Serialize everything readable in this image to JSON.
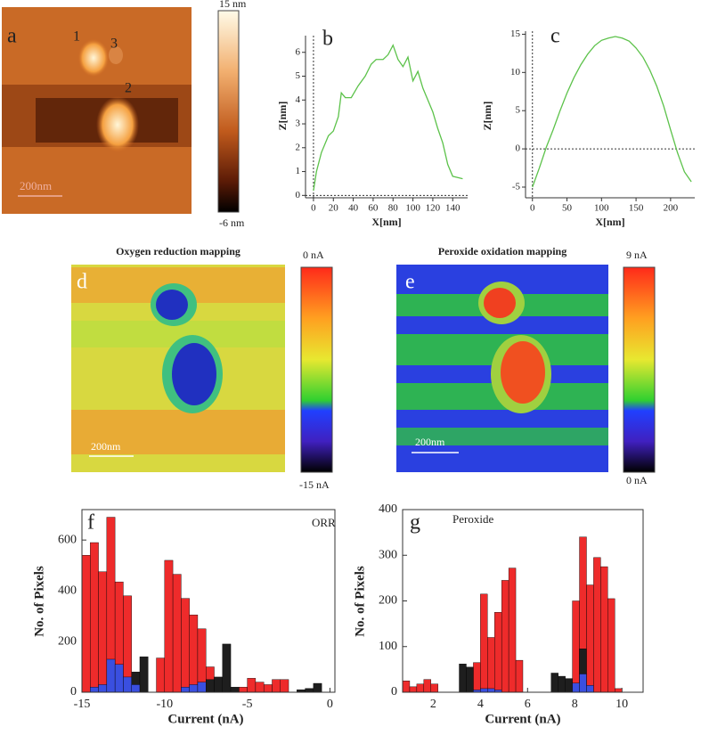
{
  "images": [
    {
      "label": "a",
      "markers": [
        "1",
        "2",
        "3"
      ],
      "scale": "200nm",
      "colorbar": [
        "15 nm",
        "-6 nm"
      ]
    },
    {
      "title": "Oxygen reduction mapping",
      "label": "d",
      "scale": "200nm",
      "colorbar": [
        "0 nA",
        "-15 nA"
      ]
    },
    {
      "title": "Peroxide oxidation mapping",
      "label": "e",
      "scale": "200nm",
      "colorbar": [
        "9 nA",
        "0 nA"
      ]
    }
  ],
  "chart_data": [
    {
      "type": "line",
      "label": "b",
      "xlabel": "X[nm]",
      "ylabel": "Z[nm]",
      "color": "#5cc24a",
      "zero_lines": true,
      "frame": false,
      "x": [
        0,
        3,
        8,
        15,
        20,
        25,
        28,
        32,
        38,
        45,
        52,
        58,
        63,
        70,
        75,
        80,
        85,
        90,
        95,
        100,
        105,
        110,
        115,
        120,
        125,
        130,
        135,
        140,
        150
      ],
      "values": [
        0.2,
        1.0,
        1.8,
        2.5,
        2.7,
        3.3,
        4.3,
        4.1,
        4.1,
        4.6,
        5.0,
        5.5,
        5.7,
        5.7,
        5.9,
        6.3,
        5.7,
        5.4,
        5.8,
        4.8,
        5.2,
        4.5,
        4.0,
        3.5,
        2.8,
        2.2,
        1.3,
        0.8,
        0.7
      ],
      "xlim": [
        -8,
        155
      ],
      "ylim": [
        -0.1,
        6.7
      ],
      "xticks": [
        0,
        20,
        40,
        60,
        80,
        100,
        120,
        140
      ],
      "yticks": [
        0,
        1,
        2,
        3,
        4,
        5,
        6
      ]
    },
    {
      "type": "line",
      "label": "c",
      "xlabel": "X[nm]",
      "ylabel": "Z[nm]",
      "color": "#5cc24a",
      "zero_lines": true,
      "frame": false,
      "x": [
        0,
        10,
        20,
        30,
        40,
        50,
        60,
        70,
        80,
        90,
        100,
        110,
        120,
        130,
        140,
        150,
        160,
        170,
        180,
        190,
        200,
        210,
        220,
        230
      ],
      "values": [
        -5,
        -2.5,
        0.2,
        2.5,
        5,
        7.3,
        9.3,
        11,
        12.4,
        13.5,
        14.2,
        14.5,
        14.7,
        14.5,
        14.1,
        13.2,
        12,
        10.3,
        8.2,
        5.6,
        2.5,
        -0.5,
        -3,
        -4.3
      ],
      "xlim": [
        -10,
        235
      ],
      "ylim": [
        -6.4,
        15.4
      ],
      "xticks": [
        0,
        50,
        100,
        150,
        200
      ],
      "yticks": [
        -5,
        0,
        5,
        10,
        15
      ]
    },
    {
      "type": "histogram",
      "label": "f",
      "annotation": "ORR",
      "xlabel": "Current (nA)",
      "ylabel": "No. of Pixels",
      "frame": true,
      "bins": [
        -15,
        -14.5,
        -14,
        -13.5,
        -13,
        -12.5,
        -12,
        -11.5,
        -11,
        -10.5,
        -10,
        -9.5,
        -9,
        -8.5,
        -8,
        -7.5,
        -7,
        -6.5,
        -6,
        -5.5,
        -5,
        -4.5,
        -4,
        -3.5,
        -3,
        -2.5,
        -2,
        -1.5,
        -1,
        -0.5,
        0
      ],
      "series": [
        {
          "color": "#ee2b2b",
          "values": [
            540,
            590,
            475,
            690,
            435,
            380,
            0,
            0,
            0,
            135,
            520,
            465,
            370,
            305,
            250,
            100,
            0,
            0,
            0,
            20,
            55,
            40,
            30,
            50,
            50,
            0,
            0,
            0,
            0,
            0
          ]
        },
        {
          "color": "#1e1e1e",
          "values": [
            0,
            0,
            0,
            0,
            0,
            0,
            80,
            140,
            0,
            0,
            0,
            0,
            0,
            0,
            0,
            50,
            60,
            190,
            20,
            0,
            0,
            0,
            0,
            0,
            0,
            0,
            10,
            15,
            35,
            0
          ]
        },
        {
          "color": "#3a4fe0",
          "values": [
            0,
            20,
            30,
            130,
            110,
            60,
            30,
            0,
            0,
            0,
            0,
            0,
            20,
            30,
            40,
            0,
            0,
            0,
            0,
            0,
            0,
            0,
            0,
            0,
            0,
            0,
            0,
            0,
            0,
            0
          ]
        }
      ],
      "xlim": [
        -15,
        0.3
      ],
      "ylim": [
        0,
        720
      ],
      "xticks": [
        -15,
        -10,
        -5,
        0
      ],
      "yticks": [
        0,
        200,
        400,
        600
      ]
    },
    {
      "type": "histogram",
      "label": "g",
      "annotation": "Peroxide",
      "xlabel": "Current (nA)",
      "ylabel": "No. of Pixels",
      "frame": true,
      "bins": [
        0.7,
        1.0,
        1.3,
        1.6,
        1.9,
        2.2,
        2.5,
        2.8,
        3.1,
        3.4,
        3.7,
        4.0,
        4.3,
        4.6,
        4.9,
        5.2,
        5.5,
        5.8,
        6.1,
        6.4,
        6.7,
        7.0,
        7.3,
        7.6,
        7.9,
        8.2,
        8.5,
        8.8,
        9.1,
        9.4,
        9.7,
        10.0,
        10.3,
        10.6,
        10.9
      ],
      "series": [
        {
          "color": "#ee2b2b",
          "values": [
            25,
            12,
            18,
            28,
            18,
            0,
            0,
            0,
            0,
            0,
            65,
            215,
            120,
            175,
            245,
            272,
            70,
            0,
            0,
            0,
            0,
            0,
            0,
            0,
            200,
            340,
            235,
            295,
            275,
            205,
            8,
            0,
            0,
            0
          ]
        },
        {
          "color": "#1e1e1e",
          "values": [
            0,
            0,
            0,
            0,
            0,
            0,
            0,
            0,
            62,
            55,
            0,
            0,
            0,
            0,
            0,
            0,
            0,
            0,
            0,
            0,
            0,
            42,
            35,
            30,
            0,
            95,
            0,
            0,
            0,
            0,
            0,
            0,
            0,
            0
          ]
        },
        {
          "color": "#3a4fe0",
          "values": [
            0,
            0,
            0,
            0,
            0,
            0,
            0,
            0,
            0,
            0,
            5,
            8,
            8,
            5,
            0,
            0,
            0,
            0,
            0,
            0,
            0,
            0,
            0,
            0,
            20,
            40,
            15,
            0,
            0,
            0,
            0,
            0,
            0,
            0
          ]
        }
      ],
      "xlim": [
        0.7,
        10.9
      ],
      "ylim": [
        0,
        400
      ],
      "xticks": [
        2,
        4,
        6,
        8,
        10
      ],
      "yticks": [
        0,
        100,
        200,
        300,
        400
      ]
    }
  ]
}
